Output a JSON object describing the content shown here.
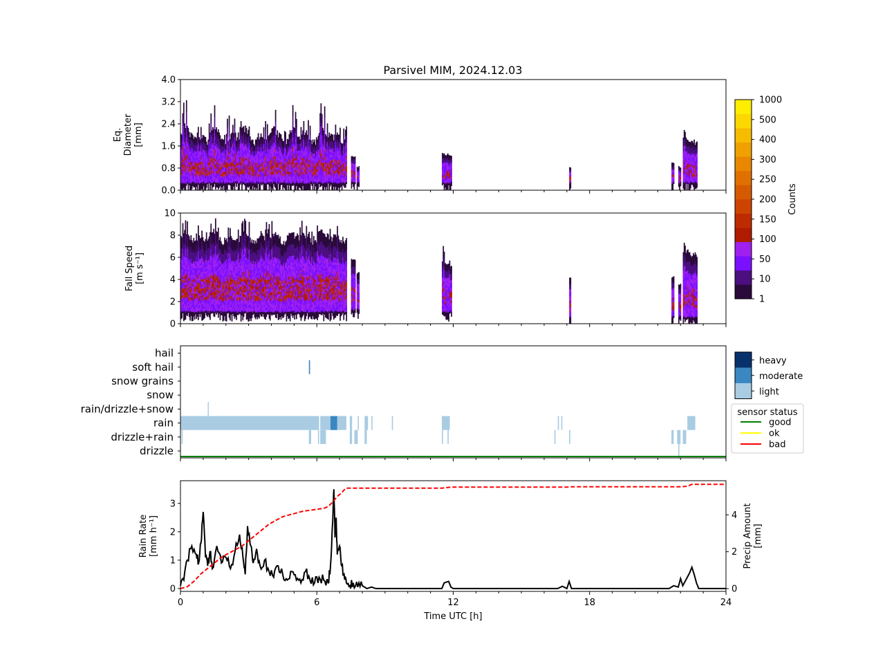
{
  "title": "Parsivel MIM, 2024.12.03",
  "chart_data": [
    {
      "type": "heatmap",
      "panel": "diameter",
      "ylabel": [
        "Eq.",
        "Diameter",
        "[mm]"
      ],
      "yticks": [
        "0.0",
        "0.8",
        "1.6",
        "2.4",
        "3.2",
        "4.0"
      ],
      "ylim": [
        0,
        4
      ],
      "xlim": [
        0,
        24
      ],
      "segments": [
        {
          "t0": 0.0,
          "t1": 7.3,
          "ymin": 0.25,
          "ymax": 1.6,
          "peak": 3.0,
          "dense": 0.9
        },
        {
          "t0": 7.5,
          "t1": 7.7,
          "ymin": 0.25,
          "ymax": 1.2,
          "peak": 1.2,
          "dense": 0.6
        },
        {
          "t0": 7.75,
          "t1": 7.85,
          "ymin": 0.25,
          "ymax": 0.8,
          "peak": 0.8,
          "dense": 0.5
        },
        {
          "t0": 11.5,
          "t1": 11.9,
          "ymin": 0.25,
          "ymax": 1.2,
          "peak": 1.5,
          "dense": 0.6
        },
        {
          "t0": 17.1,
          "t1": 17.15,
          "ymin": 0.25,
          "ymax": 0.8,
          "peak": 0.8,
          "dense": 0.9
        },
        {
          "t0": 21.6,
          "t1": 21.7,
          "ymin": 0.25,
          "ymax": 0.9,
          "peak": 1.0,
          "dense": 0.6
        },
        {
          "t0": 21.9,
          "t1": 22.0,
          "ymin": 0.25,
          "ymax": 0.8,
          "peak": 0.8,
          "dense": 0.6
        },
        {
          "t0": 22.1,
          "t1": 22.7,
          "ymin": 0.25,
          "ymax": 1.6,
          "peak": 2.2,
          "dense": 0.7
        }
      ]
    },
    {
      "type": "heatmap",
      "panel": "fall-speed",
      "ylabel": [
        "Fall Speed",
        "[m s⁻¹]"
      ],
      "yticks": [
        "0",
        "2",
        "4",
        "6",
        "8",
        "10"
      ],
      "ylim": [
        0,
        10
      ],
      "xlim": [
        0,
        24
      ],
      "segments": [
        {
          "t0": 0.0,
          "t1": 7.3,
          "ymin": 1.0,
          "ymax": 7.0,
          "peak": 9.8,
          "dense": 0.9
        },
        {
          "t0": 7.5,
          "t1": 7.7,
          "ymin": 1.2,
          "ymax": 5.5,
          "peak": 6.0,
          "dense": 0.6
        },
        {
          "t0": 7.75,
          "t1": 7.85,
          "ymin": 1.2,
          "ymax": 4.5,
          "peak": 4.5,
          "dense": 0.5
        },
        {
          "t0": 11.5,
          "t1": 11.9,
          "ymin": 1.0,
          "ymax": 5.0,
          "peak": 7.0,
          "dense": 0.6
        },
        {
          "t0": 17.1,
          "t1": 17.15,
          "ymin": 0.5,
          "ymax": 4.0,
          "peak": 4.0,
          "dense": 0.9
        },
        {
          "t0": 21.6,
          "t1": 21.7,
          "ymin": 0.6,
          "ymax": 4.0,
          "peak": 4.5,
          "dense": 0.6
        },
        {
          "t0": 21.9,
          "t1": 22.0,
          "ymin": 0.6,
          "ymax": 3.5,
          "peak": 3.5,
          "dense": 0.6
        },
        {
          "t0": 22.1,
          "t1": 22.7,
          "ymin": 0.5,
          "ymax": 6.0,
          "peak": 7.0,
          "dense": 0.7
        }
      ]
    },
    {
      "type": "heatmap",
      "panel": "precip-type",
      "categories": [
        "drizzle",
        "drizzle+rain",
        "rain",
        "rain/drizzle+snow",
        "snow",
        "snow grains",
        "soft hail",
        "hail"
      ],
      "xlim": [
        0,
        24
      ],
      "bars": [
        {
          "cat": "rain",
          "t0": 0.0,
          "t1": 6.1,
          "level": "light"
        },
        {
          "cat": "rain",
          "t0": 6.15,
          "t1": 6.6,
          "level": "light"
        },
        {
          "cat": "rain",
          "t0": 6.6,
          "t1": 6.9,
          "level": "moderate"
        },
        {
          "cat": "rain",
          "t0": 6.9,
          "t1": 7.3,
          "level": "light"
        },
        {
          "cat": "rain",
          "t0": 7.45,
          "t1": 7.55,
          "level": "light"
        },
        {
          "cat": "rain",
          "t0": 7.8,
          "t1": 7.85,
          "level": "light"
        },
        {
          "cat": "rain",
          "t0": 8.1,
          "t1": 8.25,
          "level": "light"
        },
        {
          "cat": "rain",
          "t0": 8.4,
          "t1": 8.45,
          "level": "light"
        },
        {
          "cat": "rain",
          "t0": 9.3,
          "t1": 9.35,
          "level": "light"
        },
        {
          "cat": "rain",
          "t0": 11.5,
          "t1": 11.85,
          "level": "light"
        },
        {
          "cat": "rain",
          "t0": 16.6,
          "t1": 16.65,
          "level": "light"
        },
        {
          "cat": "rain",
          "t0": 16.75,
          "t1": 16.8,
          "level": "light"
        },
        {
          "cat": "rain",
          "t0": 22.3,
          "t1": 22.65,
          "level": "light"
        },
        {
          "cat": "drizzle+rain",
          "t0": 0.05,
          "t1": 0.1,
          "level": "light"
        },
        {
          "cat": "drizzle+rain",
          "t0": 5.65,
          "t1": 5.75,
          "level": "light"
        },
        {
          "cat": "drizzle+rain",
          "t0": 6.05,
          "t1": 6.1,
          "level": "light"
        },
        {
          "cat": "drizzle+rain",
          "t0": 6.15,
          "t1": 6.4,
          "level": "light"
        },
        {
          "cat": "drizzle+rain",
          "t0": 7.45,
          "t1": 7.55,
          "level": "light"
        },
        {
          "cat": "drizzle+rain",
          "t0": 7.65,
          "t1": 7.8,
          "level": "light"
        },
        {
          "cat": "drizzle+rain",
          "t0": 8.1,
          "t1": 8.2,
          "level": "light"
        },
        {
          "cat": "drizzle+rain",
          "t0": 11.5,
          "t1": 11.55,
          "level": "light"
        },
        {
          "cat": "drizzle+rain",
          "t0": 11.75,
          "t1": 11.8,
          "level": "light"
        },
        {
          "cat": "drizzle+rain",
          "t0": 16.45,
          "t1": 16.5,
          "level": "light"
        },
        {
          "cat": "drizzle+rain",
          "t0": 17.1,
          "t1": 17.15,
          "level": "light"
        },
        {
          "cat": "drizzle+rain",
          "t0": 21.6,
          "t1": 21.7,
          "level": "light"
        },
        {
          "cat": "drizzle+rain",
          "t0": 21.85,
          "t1": 22.0,
          "level": "light"
        },
        {
          "cat": "drizzle+rain",
          "t0": 22.1,
          "t1": 22.25,
          "level": "light"
        },
        {
          "cat": "drizzle",
          "t0": 21.9,
          "t1": 21.95,
          "level": "light"
        },
        {
          "cat": "soft hail",
          "t0": 5.65,
          "t1": 5.7,
          "level": "moderate"
        },
        {
          "cat": "rain/drizzle+snow",
          "t0": 1.2,
          "t1": 1.23,
          "level": "light"
        }
      ],
      "sensor_status": [
        {
          "t0": 0,
          "t1": 24,
          "state": "good"
        }
      ]
    },
    {
      "type": "line",
      "panel": "rain-rate",
      "ylabel": [
        "Rain Rate",
        "[mm h⁻¹]"
      ],
      "y2label": [
        "Precip Amount",
        "[mm]"
      ],
      "yticks": [
        "0",
        "1",
        "2",
        "3"
      ],
      "y2ticks": [
        "0",
        "2",
        "4"
      ],
      "ylim": [
        -0.1,
        3.8
      ],
      "y2lim": [
        -0.15,
        5.85
      ],
      "xlim": [
        0,
        24
      ],
      "xticks": [
        "0",
        "6",
        "12",
        "18",
        "24"
      ],
      "xlabel": "Time UTC [h]",
      "rain_rate": {
        "x": [
          0,
          0.15,
          0.3,
          0.5,
          0.7,
          0.8,
          0.9,
          1.0,
          1.1,
          1.2,
          1.3,
          1.4,
          1.6,
          1.8,
          2.0,
          2.2,
          2.4,
          2.6,
          2.75,
          2.85,
          2.95,
          3.1,
          3.2,
          3.35,
          3.5,
          3.7,
          3.9,
          4.1,
          4.3,
          4.5,
          4.7,
          4.9,
          5.1,
          5.3,
          5.5,
          5.7,
          5.9,
          6.1,
          6.3,
          6.5,
          6.6,
          6.7,
          6.75,
          6.8,
          6.85,
          6.9,
          7.0,
          7.1,
          7.2,
          7.3,
          7.45,
          7.6,
          7.8,
          8.0,
          8.2,
          8.4,
          8.6,
          9.0,
          11.5,
          11.6,
          11.8,
          11.9,
          12.0,
          16.6,
          16.8,
          17.0,
          17.1,
          17.2,
          17.3,
          21.5,
          21.7,
          21.9,
          22.0,
          22.1,
          22.3,
          22.4,
          22.5,
          22.6,
          22.7,
          22.8,
          24.0
        ],
        "y": [
          0.1,
          0.3,
          1.0,
          1.5,
          1.2,
          0.9,
          1.6,
          2.7,
          1.1,
          0.8,
          1.3,
          0.7,
          1.5,
          0.9,
          1.1,
          0.7,
          1.3,
          1.9,
          1.1,
          0.5,
          2.2,
          1.5,
          0.9,
          1.4,
          0.8,
          1.0,
          0.6,
          0.4,
          0.8,
          0.5,
          0.3,
          0.6,
          0.3,
          0.2,
          0.6,
          0.3,
          0.2,
          0.4,
          0.3,
          0.2,
          0.8,
          2.4,
          3.5,
          1.8,
          2.5,
          1.2,
          1.5,
          0.8,
          0.5,
          0.2,
          0.1,
          0.2,
          0.05,
          0.1,
          0.0,
          0.05,
          0.0,
          0.0,
          0.0,
          0.2,
          0.25,
          0.05,
          0.0,
          0.0,
          0.08,
          0.0,
          0.25,
          0.0,
          0.0,
          0.0,
          0.1,
          0.05,
          0.35,
          0.1,
          0.4,
          0.55,
          0.75,
          0.5,
          0.2,
          0.0,
          0.0
        ]
      },
      "precip_amount": {
        "x": [
          0,
          0.3,
          0.6,
          0.9,
          1.2,
          1.5,
          1.8,
          2.1,
          2.4,
          2.7,
          3.0,
          3.3,
          3.6,
          3.9,
          4.2,
          4.5,
          4.8,
          5.1,
          5.4,
          5.7,
          6.0,
          6.3,
          6.5,
          6.7,
          6.9,
          7.1,
          7.2,
          7.3,
          7.5,
          8.0,
          9.0,
          11.5,
          11.9,
          12.0,
          17.0,
          17.2,
          22.0,
          22.3,
          22.5,
          24.0
        ],
        "y": [
          0.0,
          0.1,
          0.4,
          0.8,
          1.1,
          1.4,
          1.7,
          1.9,
          2.1,
          2.3,
          2.6,
          2.9,
          3.2,
          3.5,
          3.7,
          3.9,
          4.0,
          4.1,
          4.2,
          4.25,
          4.3,
          4.35,
          4.45,
          4.7,
          5.0,
          5.2,
          5.35,
          5.45,
          5.45,
          5.45,
          5.45,
          5.45,
          5.5,
          5.5,
          5.5,
          5.52,
          5.52,
          5.55,
          5.65,
          5.65
        ]
      }
    }
  ],
  "colorbar": {
    "label": "Counts",
    "tick_labels": [
      "1",
      "10",
      "50",
      "100",
      "150",
      "200",
      "250",
      "300",
      "400",
      "500",
      "1000"
    ],
    "colors": [
      "#2a0a3a",
      "#4b0f80",
      "#7a10ff",
      "#a020f0",
      "#b01a00",
      "#bf2b00",
      "#cc4400",
      "#d65a00",
      "#e07000",
      "#e98800",
      "#f0a000",
      "#f6bc00",
      "#fcd800",
      "#ffee00"
    ]
  },
  "intensity_legend": {
    "items": [
      {
        "label": "heavy",
        "color": "#08306b"
      },
      {
        "label": "moderate",
        "color": "#3a87c2"
      },
      {
        "label": "light",
        "color": "#a9cce3"
      }
    ]
  },
  "status_legend": {
    "title": "sensor status",
    "items": [
      {
        "label": "good",
        "color": "#008000"
      },
      {
        "label": "ok",
        "color": "#ffff00"
      },
      {
        "label": "bad",
        "color": "#ff0000"
      }
    ]
  }
}
